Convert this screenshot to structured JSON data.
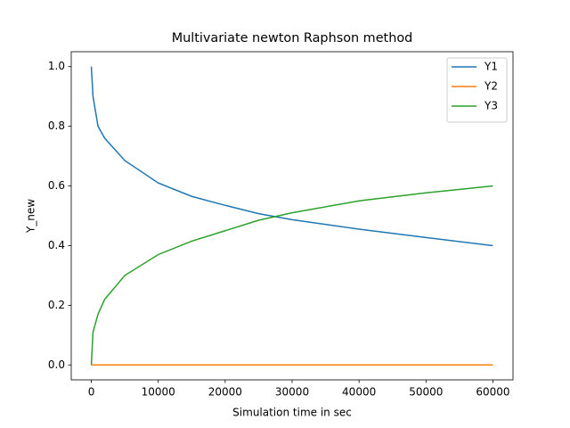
{
  "chart_data": {
    "type": "line",
    "title": "Multivariate newton Raphson method",
    "x_label": "Simulation time in sec",
    "y_label": "Y_new",
    "x": [
      0,
      250,
      1000,
      2000,
      5000,
      10000,
      15000,
      20000,
      25000,
      30000,
      40000,
      50000,
      60000
    ],
    "series": [
      {
        "name": "Y1",
        "color": "#1f77b4",
        "values": [
          1.0,
          0.9,
          0.8,
          0.76,
          0.685,
          0.61,
          0.565,
          0.535,
          0.507,
          0.487,
          0.455,
          0.427,
          0.4
        ]
      },
      {
        "name": "Y2",
        "color": "#ff7f0e",
        "values": [
          0,
          0,
          0,
          0,
          0,
          0,
          0,
          0,
          0,
          0,
          0,
          0,
          0
        ]
      },
      {
        "name": "Y3",
        "color": "#2ca02c",
        "values": [
          0,
          0.11,
          0.17,
          0.22,
          0.3,
          0.37,
          0.415,
          0.45,
          0.485,
          0.51,
          0.55,
          0.577,
          0.6
        ]
      }
    ],
    "xlim": [
      -3000,
      63000
    ],
    "ylim": [
      -0.05,
      1.05
    ],
    "xticks": [
      0,
      10000,
      20000,
      30000,
      40000,
      50000,
      60000
    ],
    "yticks": [
      {
        "value": 0,
        "label": "0.0"
      },
      {
        "value": 0.2,
        "label": "0.2"
      },
      {
        "value": 0.4,
        "label": "0.4"
      },
      {
        "value": 0.6,
        "label": "0.6"
      },
      {
        "value": 0.8,
        "label": "0.8"
      },
      {
        "value": 1,
        "label": "1.0"
      }
    ],
    "legend": "upper right",
    "grid": false
  }
}
